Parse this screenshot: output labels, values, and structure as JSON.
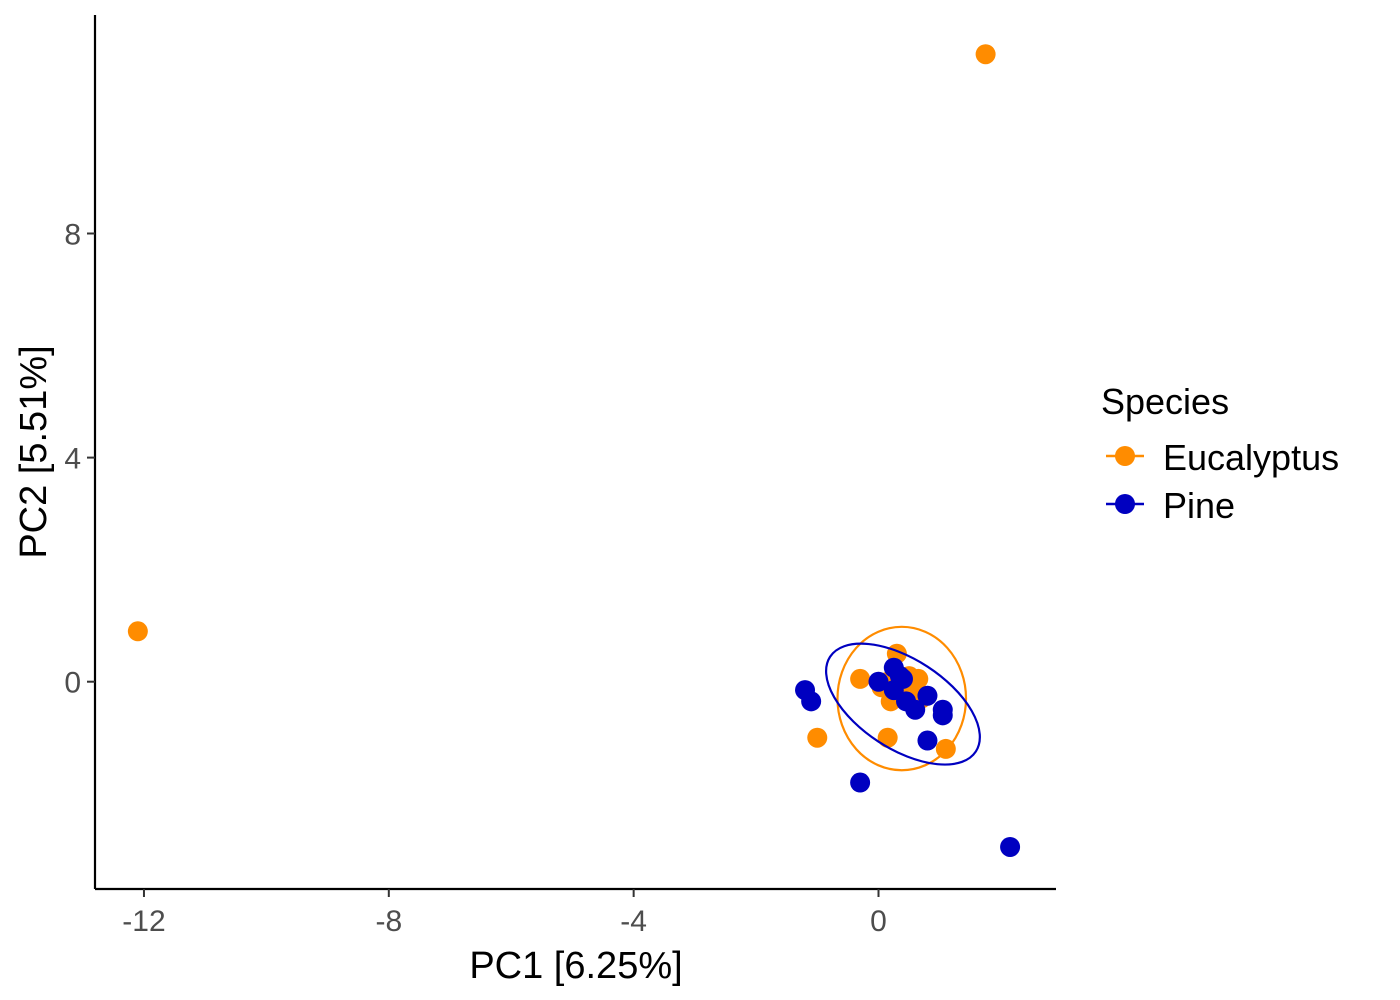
{
  "chart_data": {
    "type": "scatter",
    "xlabel": "PC1 [6.25%]",
    "ylabel": "PC2 [5.51%]",
    "xlim": [
      -12.8,
      2.9
    ],
    "ylim": [
      -3.7,
      11.9
    ],
    "x_ticks": [
      -12,
      -8,
      -4,
      0
    ],
    "x_tick_labels": [
      "-12",
      "-8",
      "-4",
      "0"
    ],
    "y_ticks": [
      0,
      4,
      8
    ],
    "y_tick_labels": [
      "0",
      "4",
      "8"
    ],
    "grid": false,
    "legend": {
      "title": "Species",
      "position": "right",
      "entries": [
        "Eucalyptus",
        "Pine"
      ]
    },
    "ellipses": true,
    "series": [
      {
        "name": "Eucalyptus",
        "color": "#FF8C00",
        "points": [
          [
            1.75,
            11.2
          ],
          [
            -12.1,
            0.9
          ],
          [
            0.3,
            0.5
          ],
          [
            -0.3,
            0.05
          ],
          [
            0.15,
            0.0
          ],
          [
            0.5,
            0.1
          ],
          [
            0.65,
            0.05
          ],
          [
            0.45,
            -0.1
          ],
          [
            0.35,
            0.1
          ],
          [
            0.2,
            -0.35
          ],
          [
            0.55,
            -0.25
          ],
          [
            0.15,
            -1.0
          ],
          [
            -1.0,
            -1.0
          ],
          [
            1.1,
            -1.2
          ],
          [
            0.7,
            -0.3
          ],
          [
            0.05,
            -0.1
          ]
        ],
        "ellipse": {
          "cx": 0.38,
          "cy": -0.3,
          "rx": 1.05,
          "ry": 1.28,
          "angle": 0
        }
      },
      {
        "name": "Pine",
        "color": "#0000C0",
        "points": [
          [
            0.25,
            0.25
          ],
          [
            0.0,
            0.0
          ],
          [
            0.4,
            0.05
          ],
          [
            0.25,
            -0.15
          ],
          [
            0.45,
            -0.35
          ],
          [
            0.6,
            -0.5
          ],
          [
            0.8,
            -0.25
          ],
          [
            1.05,
            -0.5
          ],
          [
            1.05,
            -0.6
          ],
          [
            -1.2,
            -0.15
          ],
          [
            -1.1,
            -0.35
          ],
          [
            0.8,
            -1.05
          ],
          [
            -0.3,
            -1.8
          ],
          [
            2.15,
            -2.95
          ],
          [
            0.35,
            0.1
          ]
        ],
        "ellipse": {
          "cx": 0.4,
          "cy": -0.4,
          "rx": 1.42,
          "ry": 0.8,
          "angle": -33
        }
      }
    ]
  }
}
